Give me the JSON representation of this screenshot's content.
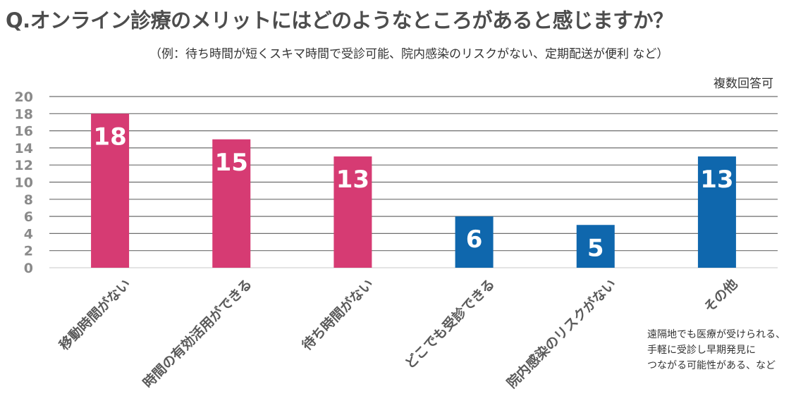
{
  "title": "Q.オンライン診療のメリットにはどのようなところがあると感じますか？",
  "subtitle": "（例：待ち時間が短くスキマ時間で受診可能、院内感染のリスクがない、定期配送が便利 など）",
  "note": "複数回答可",
  "annotation": {
    "lines": [
      "遠隔地でも医療が受けられる、",
      "手軽に受診し早期発見に",
      "つながる可能性がある、など"
    ]
  },
  "chart_data": {
    "type": "bar",
    "categories": [
      "移動時間がない",
      "時間の有効活用ができる",
      "待ち時間がない",
      "どこでも受診できる",
      "院内感染のリスクがない",
      "その他"
    ],
    "values": [
      18,
      15,
      13,
      6,
      5,
      13
    ],
    "bar_colors": [
      "#d63b73",
      "#d63b73",
      "#d63b73",
      "#0f67ad",
      "#0f67ad",
      "#0f67ad"
    ],
    "ylim": [
      0,
      20
    ],
    "yticks": [
      0,
      2,
      4,
      6,
      8,
      10,
      12,
      14,
      16,
      18,
      20
    ],
    "grid": true,
    "data_labels": true
  }
}
